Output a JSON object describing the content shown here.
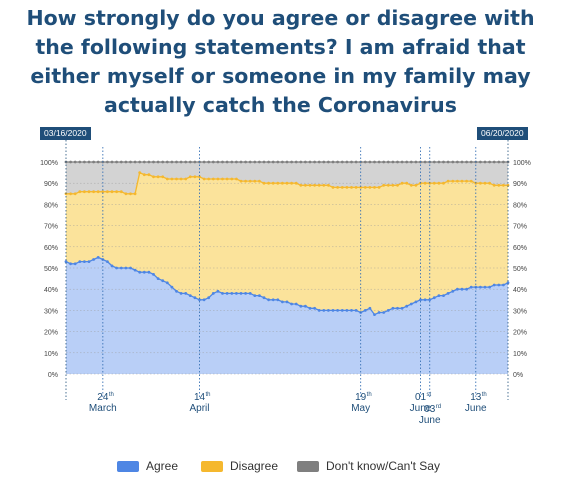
{
  "title_lines": [
    "How strongly do you agree or disagree with",
    "the following statements? I am afraid that",
    "either myself or someone in my family may",
    "actually catch the Coronavirus"
  ],
  "start_date": "03/16/2020",
  "end_date": "06/20/2020",
  "colors": {
    "agree": "#4e86e4",
    "disagree": "#f5b82e",
    "dontknow": "#7f7f7f",
    "title": "#1f4e79"
  },
  "chart_data": {
    "type": "area",
    "stacked": true,
    "ylim": [
      0,
      100
    ],
    "yticks": [
      "0%",
      "10%",
      "20%",
      "30%",
      "40%",
      "50%",
      "60%",
      "70%",
      "80%",
      "90%",
      "100%"
    ],
    "x": [
      "2020-03-16",
      "2020-03-17",
      "2020-03-18",
      "2020-03-19",
      "2020-03-20",
      "2020-03-21",
      "2020-03-22",
      "2020-03-23",
      "2020-03-24",
      "2020-03-25",
      "2020-03-26",
      "2020-03-27",
      "2020-03-28",
      "2020-03-29",
      "2020-03-30",
      "2020-03-31",
      "2020-04-01",
      "2020-04-02",
      "2020-04-03",
      "2020-04-04",
      "2020-04-05",
      "2020-04-06",
      "2020-04-07",
      "2020-04-08",
      "2020-04-09",
      "2020-04-10",
      "2020-04-11",
      "2020-04-12",
      "2020-04-13",
      "2020-04-14",
      "2020-04-15",
      "2020-04-16",
      "2020-04-17",
      "2020-04-18",
      "2020-04-19",
      "2020-04-20",
      "2020-04-21",
      "2020-04-22",
      "2020-04-23",
      "2020-04-24",
      "2020-04-25",
      "2020-04-26",
      "2020-04-27",
      "2020-04-28",
      "2020-04-29",
      "2020-04-30",
      "2020-05-01",
      "2020-05-02",
      "2020-05-03",
      "2020-05-04",
      "2020-05-05",
      "2020-05-06",
      "2020-05-07",
      "2020-05-08",
      "2020-05-09",
      "2020-05-10",
      "2020-05-11",
      "2020-05-12",
      "2020-05-13",
      "2020-05-14",
      "2020-05-15",
      "2020-05-16",
      "2020-05-17",
      "2020-05-18",
      "2020-05-19",
      "2020-05-20",
      "2020-05-21",
      "2020-05-22",
      "2020-05-23",
      "2020-05-24",
      "2020-05-25",
      "2020-05-26",
      "2020-05-27",
      "2020-05-28",
      "2020-05-29",
      "2020-05-30",
      "2020-05-31",
      "2020-06-01",
      "2020-06-02",
      "2020-06-03",
      "2020-06-04",
      "2020-06-05",
      "2020-06-06",
      "2020-06-07",
      "2020-06-08",
      "2020-06-09",
      "2020-06-10",
      "2020-06-11",
      "2020-06-12",
      "2020-06-13",
      "2020-06-14",
      "2020-06-15",
      "2020-06-16",
      "2020-06-17",
      "2020-06-18",
      "2020-06-19",
      "2020-06-20"
    ],
    "series": [
      {
        "name": "Agree",
        "values": [
          53,
          52,
          52,
          53,
          53,
          53,
          54,
          55,
          54,
          53,
          51,
          50,
          50,
          50,
          50,
          49,
          48,
          48,
          48,
          47,
          45,
          44,
          43,
          41,
          39,
          38,
          38,
          37,
          36,
          35,
          35,
          36,
          38,
          39,
          38,
          38,
          38,
          38,
          38,
          38,
          38,
          37,
          37,
          36,
          35,
          35,
          35,
          34,
          34,
          33,
          33,
          32,
          32,
          31,
          31,
          30,
          30,
          30,
          30,
          30,
          30,
          30,
          30,
          30,
          29,
          30,
          31,
          28,
          29,
          29,
          30,
          31,
          31,
          31,
          32,
          33,
          34,
          35,
          35,
          35,
          36,
          37,
          37,
          38,
          39,
          40,
          40,
          40,
          41,
          41,
          41,
          41,
          41,
          42,
          42,
          42,
          43
        ]
      },
      {
        "name": "Disagree",
        "values": [
          85,
          85,
          85,
          86,
          86,
          86,
          86,
          86,
          86,
          86,
          86,
          86,
          86,
          85,
          85,
          85,
          95,
          94,
          94,
          93,
          93,
          93,
          92,
          92,
          92,
          92,
          92,
          93,
          93,
          93,
          92,
          92,
          92,
          92,
          92,
          92,
          92,
          92,
          91,
          91,
          91,
          91,
          91,
          90,
          90,
          90,
          90,
          90,
          90,
          90,
          90,
          89,
          89,
          89,
          89,
          89,
          89,
          89,
          88,
          88,
          88,
          88,
          88,
          88,
          88,
          88,
          88,
          88,
          88,
          89,
          89,
          89,
          89,
          90,
          90,
          89,
          89,
          90,
          90,
          90,
          90,
          90,
          90,
          91,
          91,
          91,
          91,
          91,
          91,
          90,
          90,
          90,
          90,
          89,
          89,
          89,
          89
        ]
      },
      {
        "name": "Don't know/Can't Say",
        "values": [
          100,
          100,
          100,
          100,
          100,
          100,
          100,
          100,
          100,
          100,
          100,
          100,
          100,
          100,
          100,
          100,
          100,
          100,
          100,
          100,
          100,
          100,
          100,
          100,
          100,
          100,
          100,
          100,
          100,
          100,
          100,
          100,
          100,
          100,
          100,
          100,
          100,
          100,
          100,
          100,
          100,
          100,
          100,
          100,
          100,
          100,
          100,
          100,
          100,
          100,
          100,
          100,
          100,
          100,
          100,
          100,
          100,
          100,
          100,
          100,
          100,
          100,
          100,
          100,
          100,
          100,
          100,
          100,
          100,
          100,
          100,
          100,
          100,
          100,
          100,
          100,
          100,
          100,
          100,
          100,
          100,
          100,
          100,
          100,
          100,
          100,
          100,
          100,
          100,
          100,
          100,
          100,
          100,
          100,
          100,
          100,
          100
        ]
      }
    ],
    "markers": [
      {
        "date": "2020-03-24",
        "day": "24",
        "sup": "th",
        "month": "March"
      },
      {
        "date": "2020-04-14",
        "day": "14",
        "sup": "th",
        "month": "April"
      },
      {
        "date": "2020-05-19",
        "day": "19",
        "sup": "th",
        "month": "May"
      },
      {
        "date": "2020-06-01",
        "day": "01",
        "sup": "st",
        "month": "June"
      },
      {
        "date": "2020-06-03",
        "day": "03",
        "sup": "rd",
        "month": "June"
      },
      {
        "date": "2020-06-13",
        "day": "13",
        "sup": "th",
        "month": "June"
      }
    ],
    "grid": true,
    "legend_position": "bottom"
  }
}
